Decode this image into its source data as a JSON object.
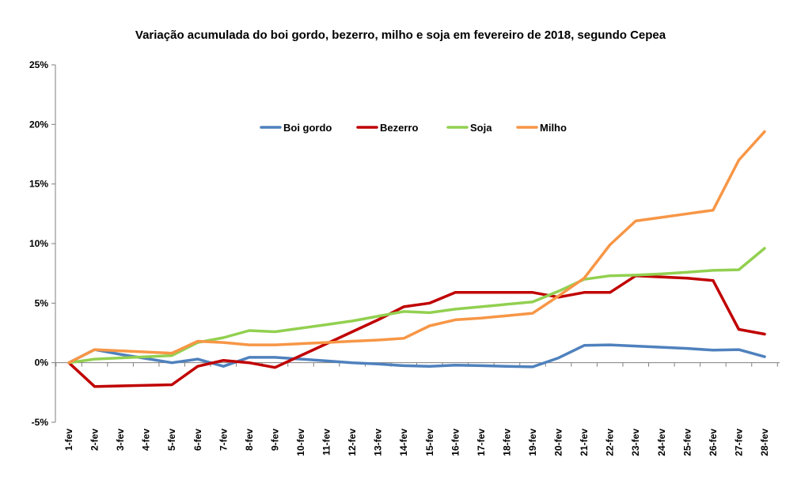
{
  "chart_data": {
    "type": "line",
    "title": "Variação acumulada do boi gordo, bezerro, milho e soja em fevereiro de 2018, segundo  Cepea",
    "xlabel": "",
    "ylabel": "",
    "ylim": [
      -5,
      25
    ],
    "yticks": [
      -5,
      0,
      5,
      10,
      15,
      20,
      25
    ],
    "ytick_labels": [
      "-5%",
      "0%",
      "5%",
      "10%",
      "15%",
      "20%",
      "25%"
    ],
    "grid": false,
    "legend_position": "top-center",
    "categories": [
      "1-fev",
      "2-fev",
      "3-fev",
      "4-fev",
      "5-fev",
      "6-fev",
      "7-fev",
      "8-fev",
      "9-fev",
      "10-fev",
      "11-fev",
      "12-fev",
      "13-fev",
      "14-fev",
      "15-fev",
      "16-fev",
      "17-fev",
      "18-fev",
      "19-fev",
      "20-fev",
      "21-fev",
      "22-fev",
      "23-fev",
      "24-fev",
      "25-fev",
      "26-fev",
      "27-fev",
      "28-fev"
    ],
    "series": [
      {
        "name": "Boi gordo",
        "color": "#4F81BD",
        "values": [
          0,
          1.1,
          0.7,
          0.35,
          0.0,
          0.3,
          -0.3,
          0.45,
          0.45,
          0.3,
          0.15,
          0.0,
          -0.1,
          -0.25,
          -0.3,
          -0.2,
          -0.25,
          -0.3,
          -0.35,
          0.4,
          1.45,
          1.5,
          1.4,
          1.3,
          1.2,
          1.05,
          1.1,
          0.5
        ]
      },
      {
        "name": "Bezerro",
        "color": "#C00000",
        "values": [
          0,
          -2.0,
          -1.95,
          -1.9,
          -1.85,
          -0.3,
          0.2,
          0.0,
          -0.4,
          0.6,
          1.6,
          2.6,
          3.6,
          4.7,
          5.0,
          5.9,
          5.9,
          5.9,
          5.9,
          5.5,
          5.9,
          5.9,
          7.3,
          7.2,
          7.1,
          6.9,
          2.8,
          2.4
        ]
      },
      {
        "name": "Soja",
        "color": "#92D050",
        "values": [
          0,
          0.3,
          0.4,
          0.5,
          0.6,
          1.7,
          2.1,
          2.7,
          2.6,
          2.9,
          3.2,
          3.5,
          3.9,
          4.3,
          4.2,
          4.5,
          4.7,
          4.9,
          5.1,
          6.0,
          7.0,
          7.3,
          7.35,
          7.45,
          7.6,
          7.75,
          7.8,
          9.6
        ]
      },
      {
        "name": "Milho",
        "color": "#F79646",
        "values": [
          0,
          1.1,
          1.0,
          0.9,
          0.8,
          1.8,
          1.7,
          1.5,
          1.5,
          1.6,
          1.7,
          1.8,
          1.9,
          2.05,
          3.1,
          3.6,
          3.75,
          3.95,
          4.15,
          5.6,
          7.1,
          9.9,
          11.9,
          12.2,
          12.5,
          12.8,
          17.0,
          19.4
        ]
      }
    ]
  }
}
